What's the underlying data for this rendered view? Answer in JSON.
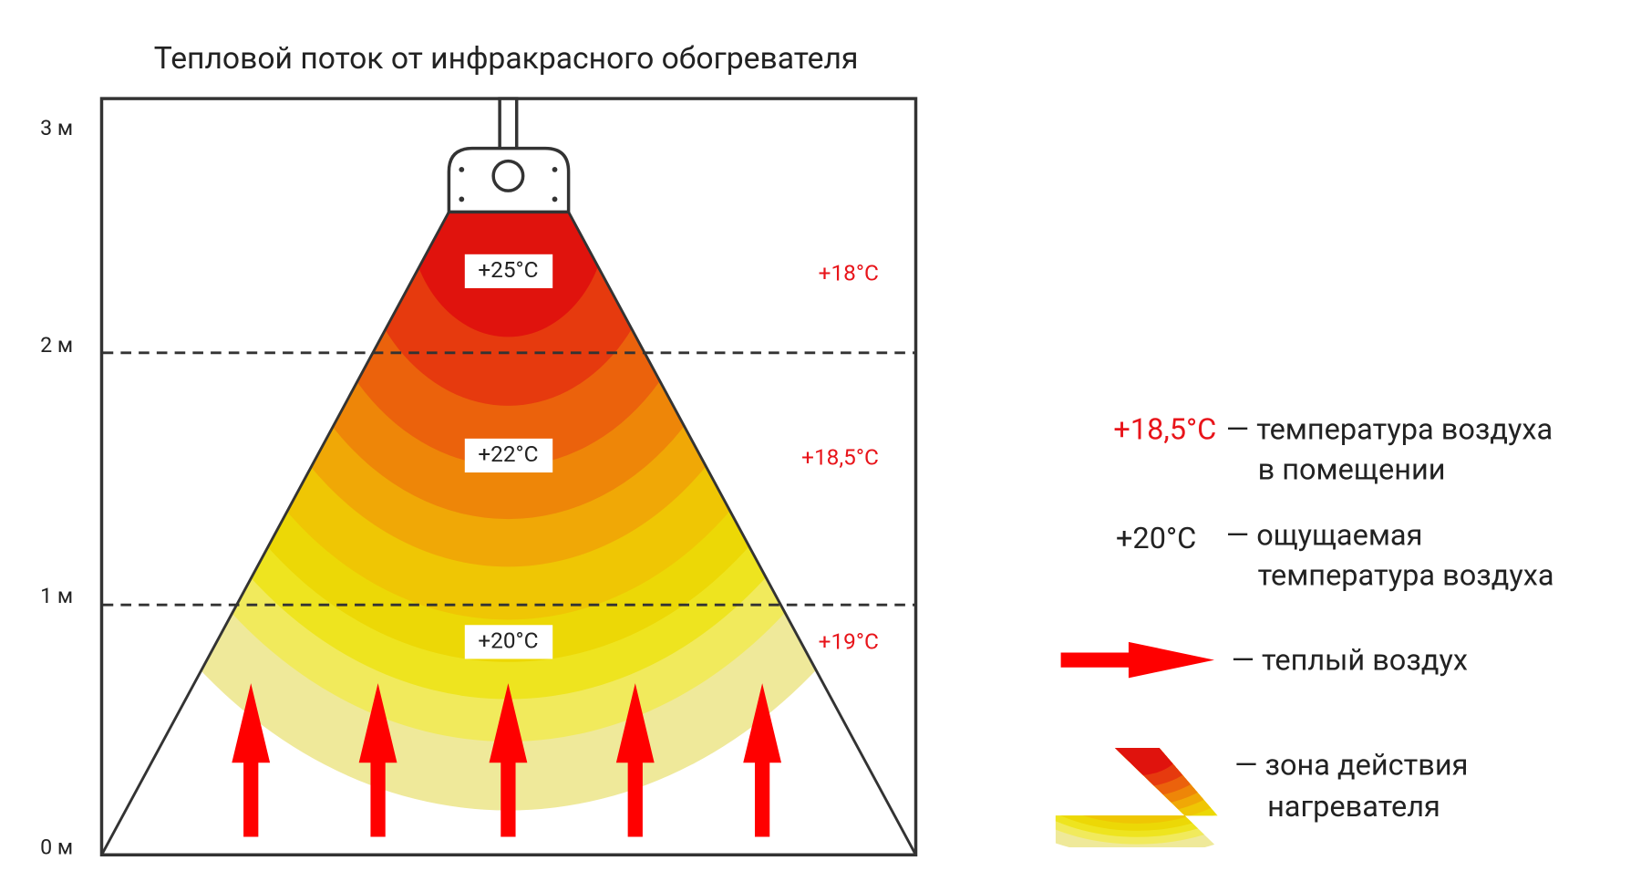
{
  "title": "Тепловой поток от инфракрасного обогревателя",
  "scale_labels": [
    "3 м",
    "2 м",
    "1 м",
    "0 м"
  ],
  "zones": [
    "+25°C",
    "+22°C",
    "+20°C"
  ],
  "air_temps": [
    "+18°C",
    "+18,5°C",
    "+19°C"
  ],
  "legend": {
    "air_sample": "+18,5°C",
    "air_desc": [
      "— температура воздуха",
      "в помещении"
    ],
    "felt_sample": "+20°C",
    "felt_desc": [
      "— ощущаемая",
      "температура воздуха"
    ],
    "warm_air": "— теплый воздух",
    "zone_desc": [
      "— зона действия",
      "нагревателя"
    ]
  }
}
